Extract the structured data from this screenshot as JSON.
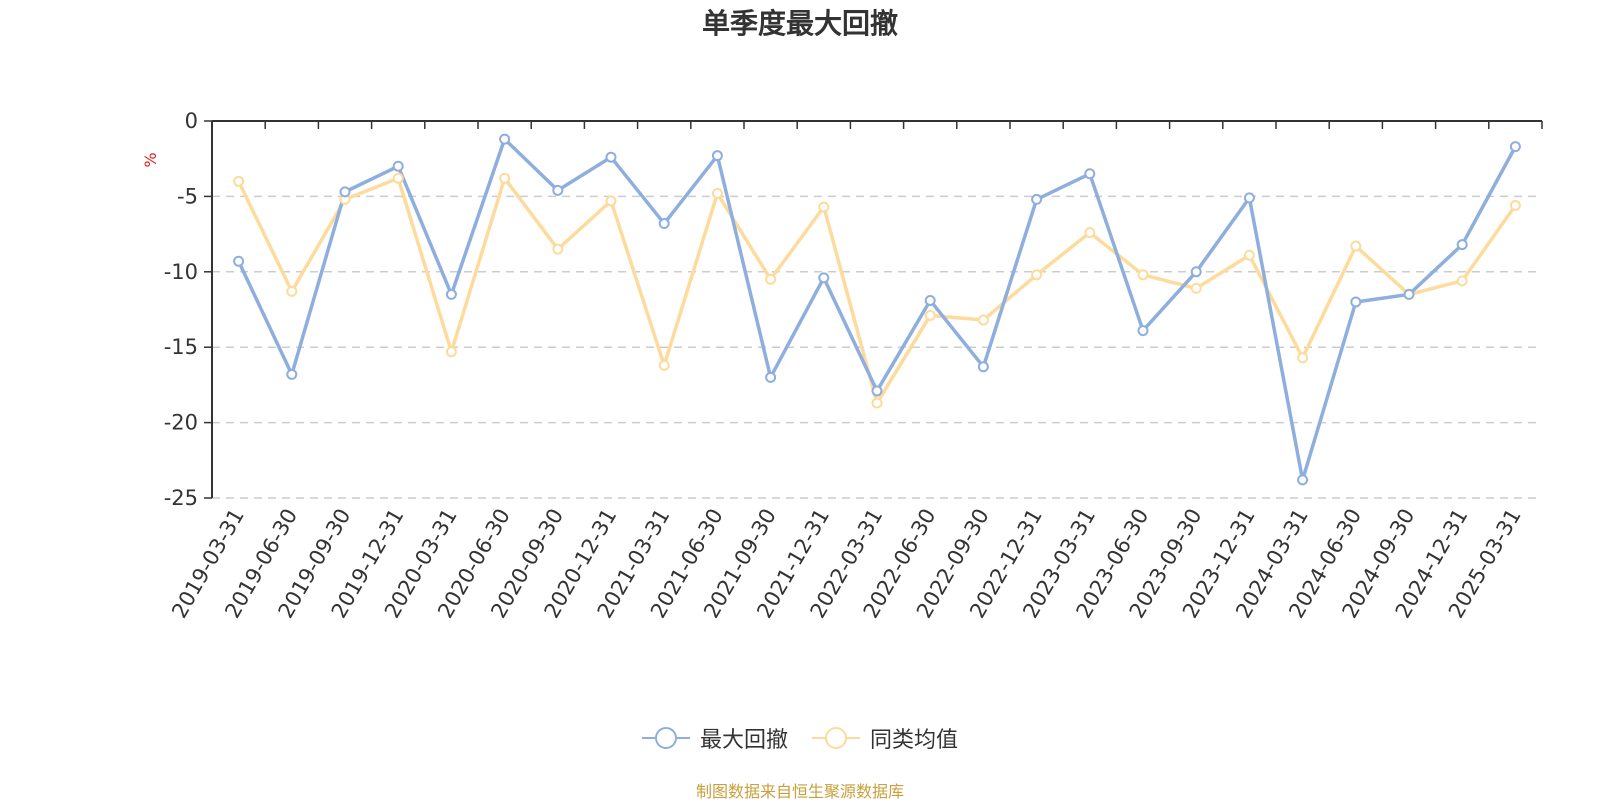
{
  "chart_data": {
    "type": "line",
    "title": "单季度最大回撤",
    "ylabel": "%",
    "ylim": [
      -25,
      0
    ],
    "yticks": [
      0,
      -5,
      -10,
      -15,
      -20,
      -25
    ],
    "grid": true,
    "legend_position": "bottom",
    "categories": [
      "2019-03-31",
      "2019-06-30",
      "2019-09-30",
      "2019-12-31",
      "2020-03-31",
      "2020-06-30",
      "2020-09-30",
      "2020-12-31",
      "2021-03-31",
      "2021-06-30",
      "2021-09-30",
      "2021-12-31",
      "2022-03-31",
      "2022-06-30",
      "2022-09-30",
      "2022-12-31",
      "2023-03-31",
      "2023-06-30",
      "2023-09-30",
      "2023-12-31",
      "2024-03-31",
      "2024-06-30",
      "2024-09-30",
      "2024-12-31",
      "2025-03-31"
    ],
    "series": [
      {
        "name": "最大回撤",
        "color": "#8eaede",
        "values": [
          -9.3,
          -16.8,
          -4.7,
          -3.0,
          -11.5,
          -1.2,
          -4.6,
          -2.4,
          -6.8,
          -2.3,
          -17.0,
          -10.4,
          -17.9,
          -11.9,
          -16.3,
          -5.2,
          -3.5,
          -13.9,
          -10.0,
          -5.1,
          -23.8,
          -12.0,
          -11.5,
          -8.2,
          -1.7
        ]
      },
      {
        "name": "同类均值",
        "color": "#fddb9c",
        "values": [
          -4.0,
          -11.3,
          -5.2,
          -3.8,
          -15.3,
          -3.8,
          -8.5,
          -5.3,
          -16.2,
          -4.8,
          -10.5,
          -5.7,
          -18.7,
          -12.9,
          -13.2,
          -10.2,
          -7.4,
          -10.2,
          -11.1,
          -8.9,
          -15.7,
          -8.3,
          -11.5,
          -10.6,
          -5.6
        ]
      }
    ]
  },
  "legend": {
    "item1": "最大回撤",
    "item2": "同类均值"
  },
  "source_note": "制图数据来自恒生聚源数据库"
}
